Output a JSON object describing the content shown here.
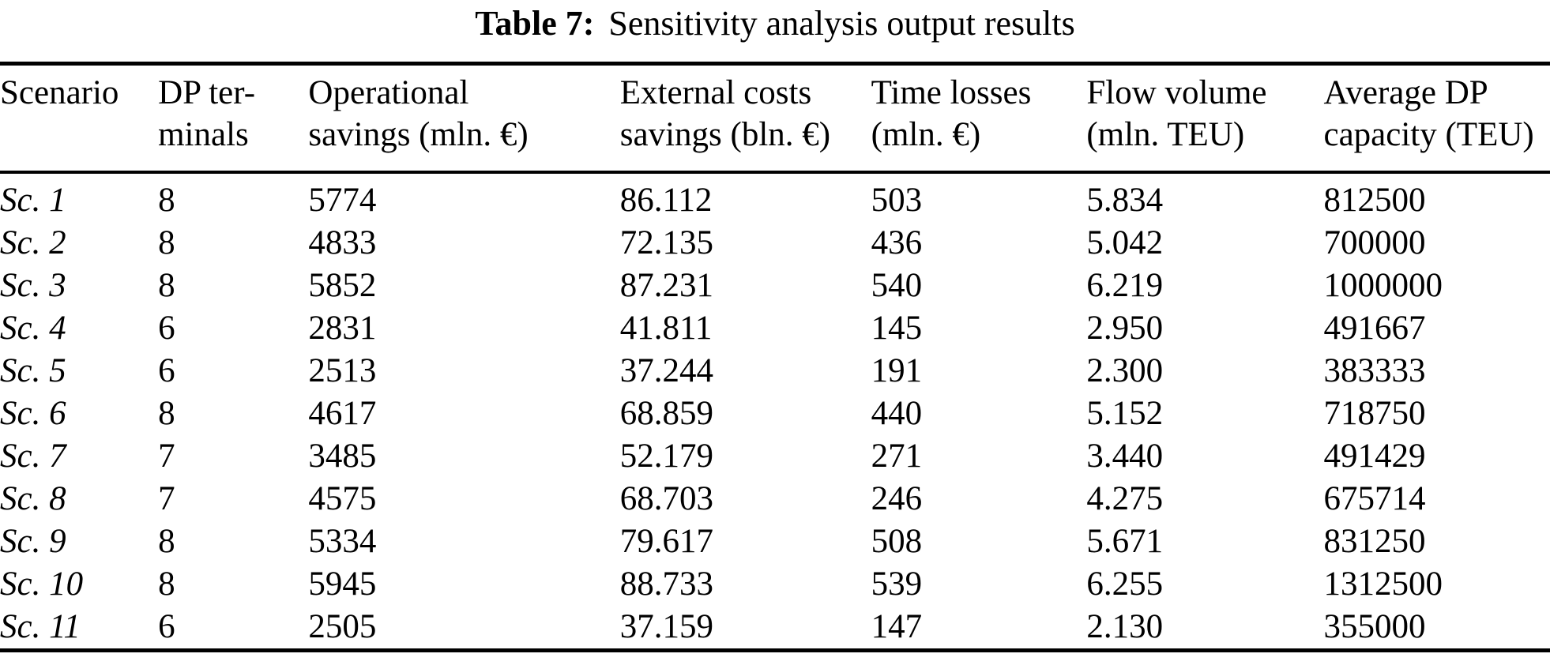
{
  "title": {
    "label": "Table 7:",
    "text": "Sensitivity analysis output results"
  },
  "table": {
    "headers": {
      "scenario": "Scenario",
      "dp_terminals": "DP ter-\nminals",
      "operational_savings": "Operational\nsavings (mln. €)",
      "external_costs_savings": "External costs\nsavings (bln. €)",
      "time_losses": "Time losses\n(mln. €)",
      "flow_volume": "Flow volume\n(mln. TEU)",
      "average_dp_capacity": "Average DP\ncapacity (TEU)"
    },
    "rows": [
      [
        "Sc. 1",
        "8",
        "5774",
        "86.112",
        "503",
        "5.834",
        "812500"
      ],
      [
        "Sc. 2",
        "8",
        "4833",
        "72.135",
        "436",
        "5.042",
        "700000"
      ],
      [
        "Sc. 3",
        "8",
        "5852",
        "87.231",
        "540",
        "6.219",
        "1000000"
      ],
      [
        "Sc. 4",
        "6",
        "2831",
        "41.811",
        "145",
        "2.950",
        "491667"
      ],
      [
        "Sc. 5",
        "6",
        "2513",
        "37.244",
        "191",
        "2.300",
        "383333"
      ],
      [
        "Sc. 6",
        "8",
        "4617",
        "68.859",
        "440",
        "5.152",
        "718750"
      ],
      [
        "Sc. 7",
        "7",
        "3485",
        "52.179",
        "271",
        "3.440",
        "491429"
      ],
      [
        "Sc. 8",
        "7",
        "4575",
        "68.703",
        "246",
        "4.275",
        "675714"
      ],
      [
        "Sc. 9",
        "8",
        "5334",
        "79.617",
        "508",
        "5.671",
        "831250"
      ],
      [
        "Sc. 10",
        "8",
        "5945",
        "88.733",
        "539",
        "6.255",
        "1312500"
      ],
      [
        "Sc. 11",
        "6",
        "2505",
        "37.159",
        "147",
        "2.130",
        "355000"
      ]
    ]
  },
  "colors": {
    "text": "#000000",
    "background": "#ffffff",
    "rule": "#000000"
  }
}
